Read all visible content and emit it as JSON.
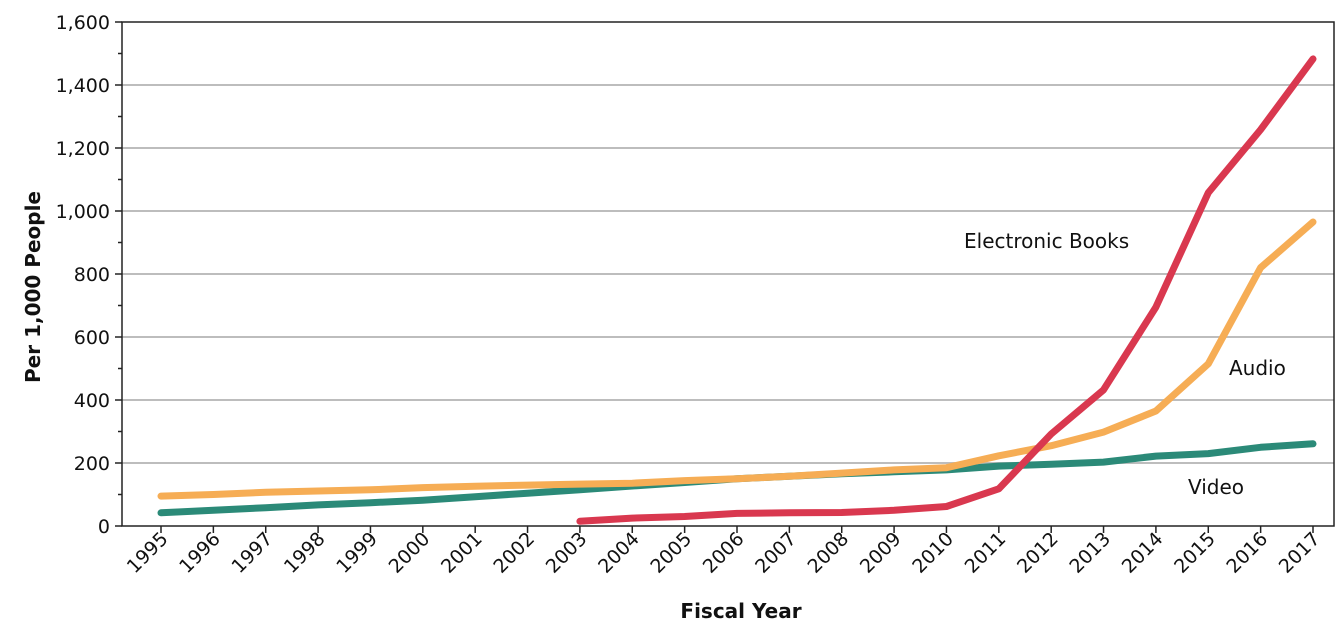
{
  "chart_data": {
    "type": "line",
    "title": "",
    "xlabel": "Fiscal Year",
    "ylabel": "Per 1,000 People",
    "ylim": [
      0,
      1600
    ],
    "yticks": [
      0,
      200,
      400,
      600,
      800,
      1000,
      1200,
      1400,
      1600
    ],
    "ytick_labels": [
      "0",
      "200",
      "400",
      "600",
      "800",
      "1,000",
      "1,200",
      "1,400",
      "1,600"
    ],
    "grid": true,
    "legend": "none (direct labels)",
    "x": [
      "1995",
      "1996",
      "1997",
      "1998",
      "1999",
      "2000",
      "2001",
      "2002",
      "2003",
      "2004",
      "2005",
      "2006",
      "2007",
      "2008",
      "2009",
      "2010",
      "2011",
      "2012",
      "2013",
      "2014",
      "2015",
      "2016",
      "2017"
    ],
    "series": [
      {
        "name": "Video",
        "color": "#2b8a78",
        "values": [
          42,
          50,
          58,
          67,
          74,
          82,
          93,
          104,
          115,
          127,
          138,
          150,
          158,
          166,
          172,
          178,
          190,
          196,
          203,
          222,
          230,
          250,
          261
        ]
      },
      {
        "name": "Audio",
        "color": "#f6ad55",
        "values": [
          95,
          100,
          107,
          111,
          115,
          122,
          126,
          130,
          133,
          136,
          144,
          150,
          158,
          168,
          178,
          185,
          223,
          255,
          298,
          365,
          515,
          820,
          965
        ]
      },
      {
        "name": "Electronic Books",
        "color": "#d9384f",
        "values": [
          null,
          null,
          null,
          null,
          null,
          null,
          null,
          null,
          15,
          25,
          30,
          40,
          42,
          43,
          50,
          62,
          118,
          292,
          432,
          695,
          1058,
          1258,
          1483
        ]
      }
    ]
  }
}
